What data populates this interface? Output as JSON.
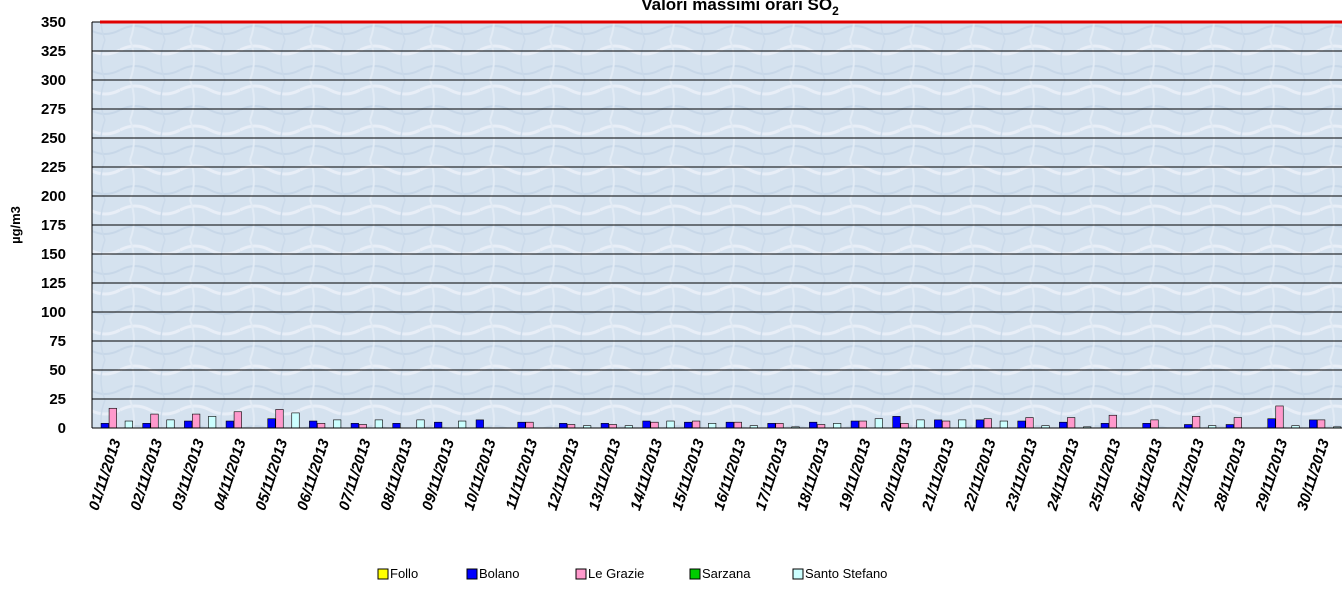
{
  "chart_data": {
    "type": "bar",
    "title": "Valori massimi orari SO",
    "title_subscript": "2",
    "ylabel": "µg/m3",
    "xlabel": "",
    "ylim": [
      0,
      350
    ],
    "yticks": [
      0,
      25,
      50,
      75,
      100,
      125,
      150,
      175,
      200,
      225,
      250,
      275,
      300,
      325,
      350
    ],
    "grid": true,
    "legend_position": "bottom",
    "limit_line": {
      "value": 350,
      "color": "#e00000"
    },
    "categories": [
      "01/11/2013",
      "02/11/2013",
      "03/11/2013",
      "04/11/2013",
      "05/11/2013",
      "06/11/2013",
      "07/11/2013",
      "08/11/2013",
      "09/11/2013",
      "10/11/2013",
      "11/11/2013",
      "12/11/2013",
      "13/11/2013",
      "14/11/2013",
      "15/11/2013",
      "16/11/2013",
      "17/11/2013",
      "18/11/2013",
      "19/11/2013",
      "20/11/2013",
      "21/11/2013",
      "22/11/2013",
      "23/11/2013",
      "24/11/2013",
      "25/11/2013",
      "26/11/2013",
      "27/11/2013",
      "28/11/2013",
      "29/11/2013",
      "30/11/2013"
    ],
    "series": [
      {
        "name": "Follo",
        "color": "#ffff00",
        "values": [
          null,
          null,
          null,
          null,
          null,
          null,
          null,
          null,
          null,
          null,
          null,
          null,
          null,
          null,
          null,
          null,
          null,
          null,
          null,
          null,
          null,
          null,
          null,
          null,
          null,
          null,
          null,
          null,
          null,
          null
        ]
      },
      {
        "name": "Bolano",
        "color": "#0000ff",
        "values": [
          4,
          4,
          6,
          6,
          8,
          6,
          4,
          4,
          5,
          7,
          5,
          4,
          4,
          6,
          5,
          5,
          4,
          5,
          6,
          10,
          7,
          7,
          6,
          5,
          4,
          4,
          3,
          3,
          8,
          7
        ]
      },
      {
        "name": "Le Grazie",
        "color": "#ff99cc",
        "values": [
          17,
          12,
          12,
          14,
          16,
          4,
          3,
          null,
          null,
          null,
          5,
          3,
          3,
          5,
          6,
          5,
          4,
          3,
          6,
          4,
          6,
          8,
          9,
          9,
          11,
          7,
          10,
          9,
          19,
          7
        ]
      },
      {
        "name": "Sarzana",
        "color": "#00cc00",
        "values": [
          null,
          null,
          null,
          null,
          null,
          null,
          null,
          null,
          null,
          null,
          null,
          null,
          null,
          null,
          null,
          null,
          null,
          null,
          null,
          null,
          null,
          null,
          null,
          null,
          null,
          null,
          null,
          null,
          null,
          null
        ]
      },
      {
        "name": "Santo Stefano",
        "color": "#ccffff",
        "values": [
          6,
          7,
          10,
          null,
          13,
          7,
          7,
          7,
          6,
          null,
          null,
          2,
          2,
          6,
          4,
          2,
          1,
          4,
          8,
          7,
          7,
          6,
          2,
          1,
          0,
          0,
          2,
          0,
          2,
          1
        ]
      }
    ]
  }
}
